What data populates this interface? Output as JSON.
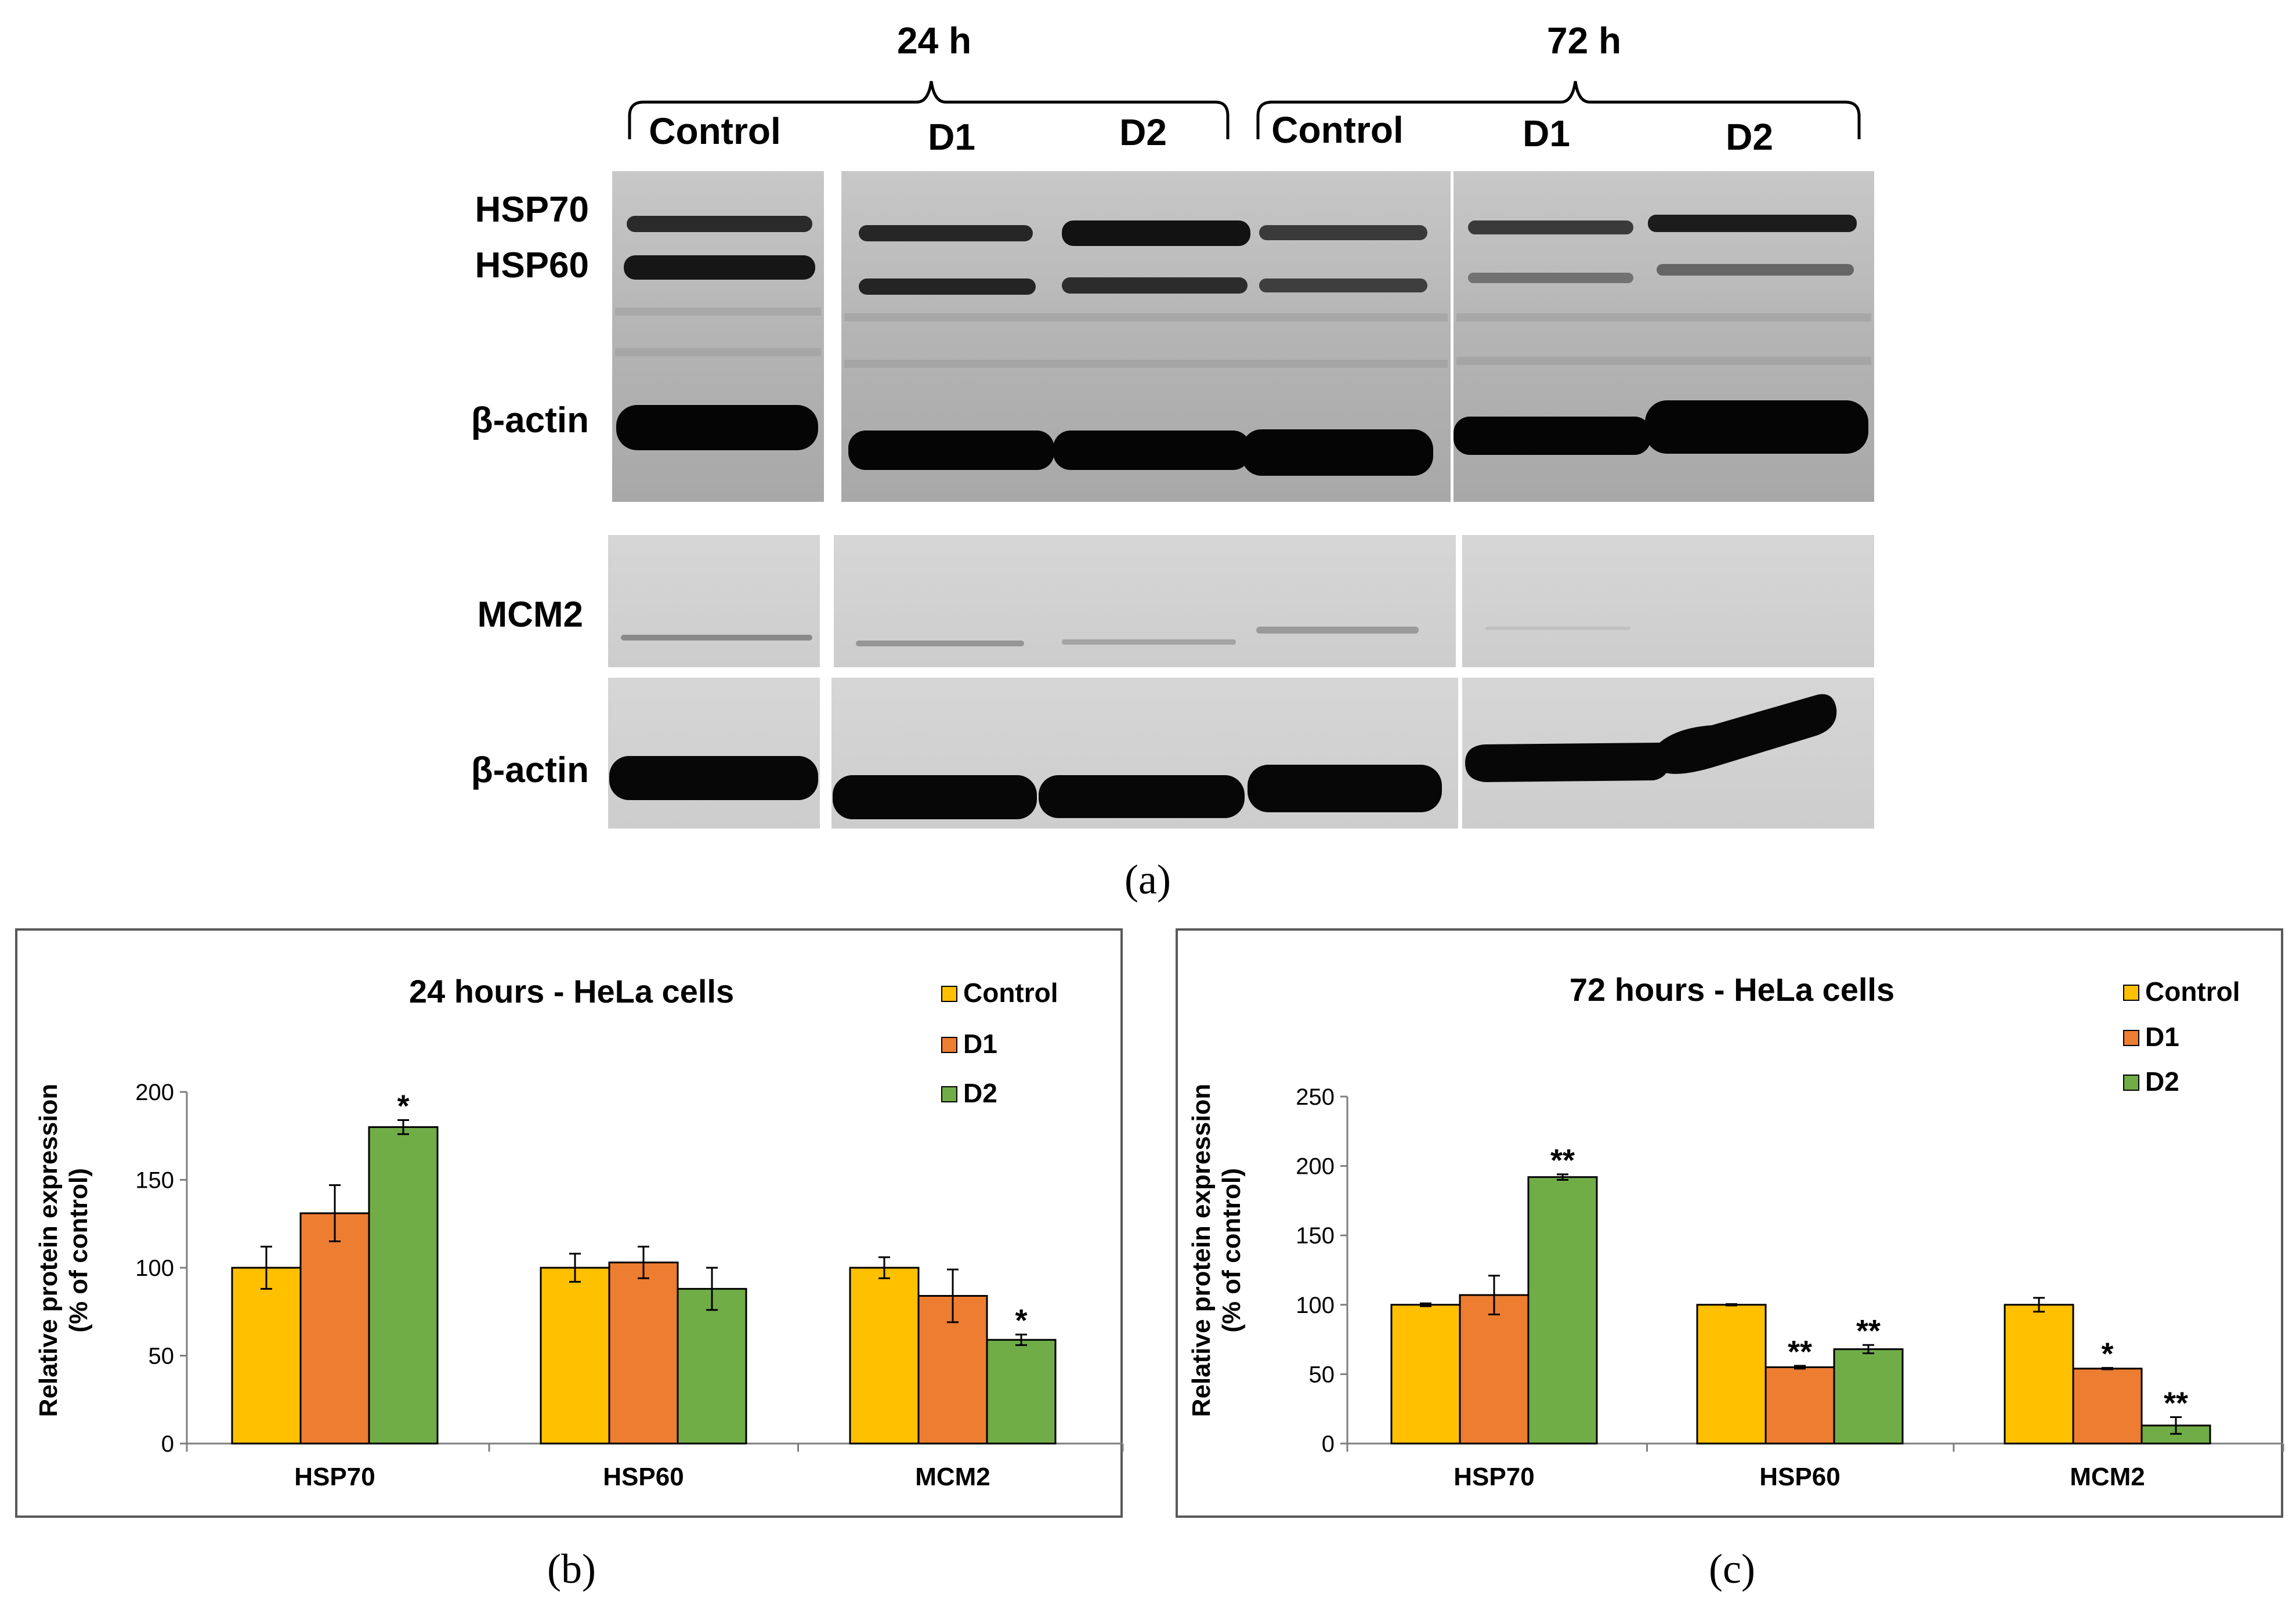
{
  "colors": {
    "control": "#FFC000",
    "d1": "#ED7D31",
    "d2": "#70AD47",
    "frame": "#595959"
  },
  "panel_a": {
    "caption": "(a)",
    "groups": [
      {
        "label": "24 h",
        "lanes": [
          "Control",
          "D1",
          "D2"
        ]
      },
      {
        "label": "72 h",
        "lanes": [
          "Control",
          "D1",
          "D2"
        ]
      }
    ],
    "row_labels": {
      "hsp70": "HSP70",
      "hsp60": "HSP60",
      "actin_top": "β-actin",
      "mcm2": "MCM2",
      "actin_bottom": "β-actin"
    }
  },
  "panel_b": {
    "caption": "(b)"
  },
  "panel_c": {
    "caption": "(c)"
  },
  "chart_data": [
    {
      "type": "bar",
      "title": "24 hours - HeLa cells",
      "xlabel": "",
      "ylabel": "Relative protein expression\n(% of control)",
      "ylabel_lines": [
        "Relative protein expression",
        "(% of control)"
      ],
      "ylim": [
        0,
        200
      ],
      "yticks": [
        0,
        50,
        100,
        150,
        200
      ],
      "categories": [
        "HSP70",
        "HSP60",
        "MCM2"
      ],
      "legend_position": "top-right",
      "series": [
        {
          "name": "Control",
          "color": "#FFC000",
          "values": [
            100,
            100,
            100
          ],
          "errors": [
            12,
            8,
            6
          ],
          "annotations": [
            "",
            "",
            ""
          ]
        },
        {
          "name": "D1",
          "color": "#ED7D31",
          "values": [
            131,
            103,
            84
          ],
          "errors": [
            16,
            9,
            15
          ],
          "annotations": [
            "",
            "",
            ""
          ]
        },
        {
          "name": "D2",
          "color": "#70AD47",
          "values": [
            180,
            88,
            59
          ],
          "errors": [
            4,
            12,
            3
          ],
          "annotations": [
            "*",
            "",
            "*"
          ]
        }
      ]
    },
    {
      "type": "bar",
      "title": "72 hours - HeLa cells",
      "xlabel": "",
      "ylabel": "Relative protein expression\n(% of control)",
      "ylabel_lines": [
        "Relative protein expression",
        "(% of control)"
      ],
      "ylim": [
        0,
        250
      ],
      "yticks": [
        0,
        50,
        100,
        150,
        200,
        250
      ],
      "categories": [
        "HSP70",
        "HSP60",
        "MCM2"
      ],
      "legend_position": "top-right",
      "series": [
        {
          "name": "Control",
          "color": "#FFC000",
          "values": [
            100,
            100,
            100
          ],
          "errors": [
            1,
            0.5,
            5
          ],
          "annotations": [
            "",
            "",
            ""
          ]
        },
        {
          "name": "D1",
          "color": "#ED7D31",
          "values": [
            107,
            55,
            54
          ],
          "errors": [
            14,
            1,
            0.5
          ],
          "annotations": [
            "",
            "**",
            "*"
          ]
        },
        {
          "name": "D2",
          "color": "#70AD47",
          "values": [
            192,
            68,
            13
          ],
          "errors": [
            2,
            3,
            6
          ],
          "annotations": [
            "**",
            "**",
            "**"
          ]
        }
      ]
    }
  ]
}
